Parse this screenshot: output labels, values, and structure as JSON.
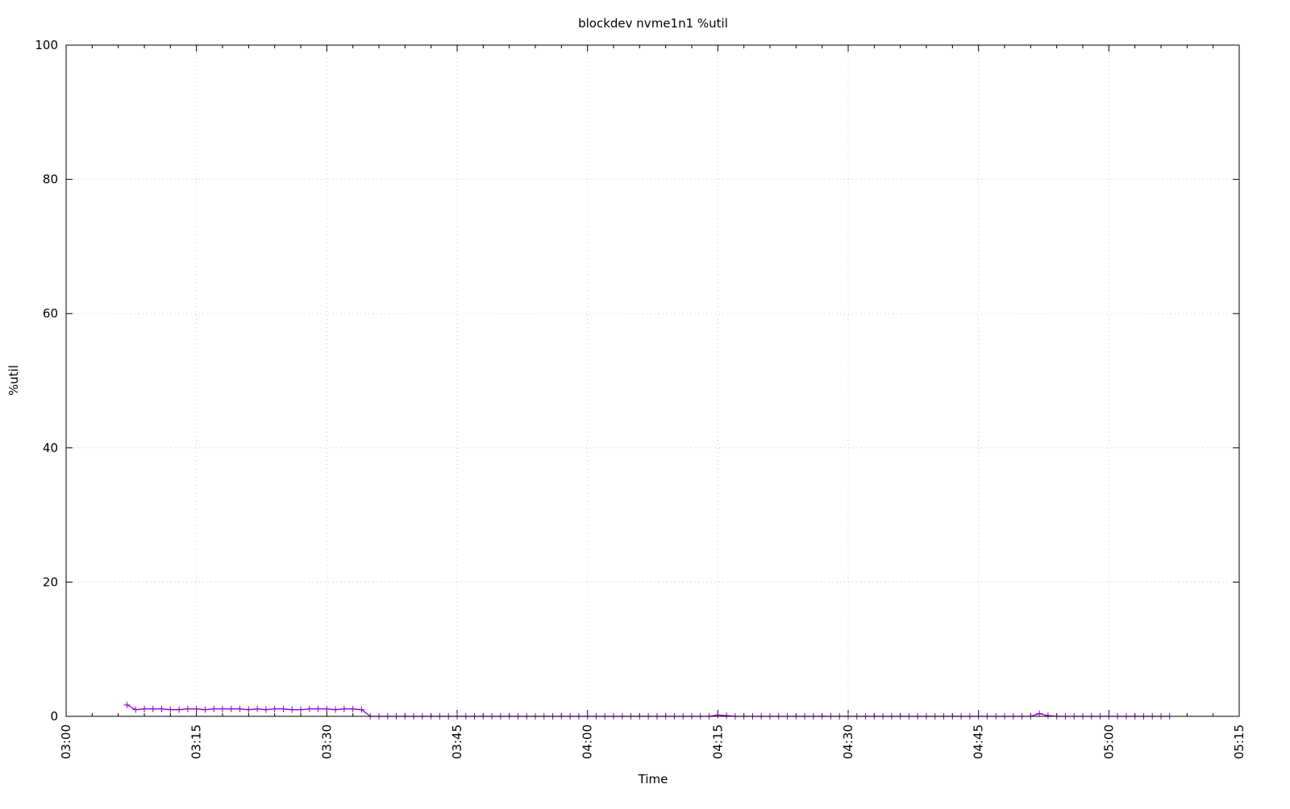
{
  "chart_data": {
    "type": "line",
    "title": "blockdev nvme1n1 %util",
    "xlabel": "Time",
    "ylabel": "%util",
    "xlim": [
      "03:00",
      "05:15"
    ],
    "ylim": [
      0,
      100
    ],
    "x_ticks": [
      "03:00",
      "03:15",
      "03:30",
      "03:45",
      "04:00",
      "04:15",
      "04:30",
      "04:45",
      "05:00",
      "05:15"
    ],
    "y_ticks": [
      0,
      20,
      40,
      60,
      80,
      100
    ],
    "grid": true,
    "legend": "none",
    "series": [
      {
        "color": "#9400d3",
        "marker": "plus",
        "x": [
          "03:07",
          "03:08",
          "03:09",
          "03:10",
          "03:11",
          "03:12",
          "03:13",
          "03:14",
          "03:15",
          "03:16",
          "03:17",
          "03:18",
          "03:19",
          "03:20",
          "03:21",
          "03:22",
          "03:23",
          "03:24",
          "03:25",
          "03:26",
          "03:27",
          "03:28",
          "03:29",
          "03:30",
          "03:31",
          "03:32",
          "03:33",
          "03:34",
          "03:35",
          "03:36",
          "03:37",
          "03:38",
          "03:39",
          "03:40",
          "03:41",
          "03:42",
          "03:43",
          "03:44",
          "03:45",
          "03:46",
          "03:47",
          "03:48",
          "03:49",
          "03:50",
          "03:51",
          "03:52",
          "03:53",
          "03:54",
          "03:55",
          "03:56",
          "03:57",
          "03:58",
          "03:59",
          "04:00",
          "04:01",
          "04:02",
          "04:03",
          "04:04",
          "04:05",
          "04:06",
          "04:07",
          "04:08",
          "04:09",
          "04:10",
          "04:11",
          "04:12",
          "04:13",
          "04:14",
          "04:15",
          "04:16",
          "04:17",
          "04:18",
          "04:19",
          "04:20",
          "04:21",
          "04:22",
          "04:23",
          "04:24",
          "04:25",
          "04:26",
          "04:27",
          "04:28",
          "04:29",
          "04:30",
          "04:31",
          "04:32",
          "04:33",
          "04:34",
          "04:35",
          "04:36",
          "04:37",
          "04:38",
          "04:39",
          "04:40",
          "04:41",
          "04:42",
          "04:43",
          "04:44",
          "04:45",
          "04:46",
          "04:47",
          "04:48",
          "04:49",
          "04:50",
          "04:51",
          "04:52",
          "04:53",
          "04:54",
          "04:55",
          "04:56",
          "04:57",
          "04:58",
          "04:59",
          "05:00",
          "05:01",
          "05:02",
          "05:03",
          "05:04",
          "05:05",
          "05:06",
          "05:07"
        ],
        "values": [
          1.7,
          1.0,
          1.1,
          1.1,
          1.1,
          1.0,
          1.0,
          1.1,
          1.1,
          1.0,
          1.1,
          1.1,
          1.1,
          1.1,
          1.0,
          1.1,
          1.0,
          1.1,
          1.1,
          1.0,
          1.0,
          1.1,
          1.1,
          1.1,
          1.0,
          1.1,
          1.1,
          1.0,
          0,
          0,
          0,
          0,
          0,
          0,
          0,
          0,
          0,
          0,
          0,
          0,
          0,
          0,
          0,
          0,
          0,
          0,
          0,
          0,
          0,
          0,
          0,
          0,
          0,
          0,
          0,
          0,
          0,
          0,
          0,
          0,
          0,
          0,
          0,
          0,
          0,
          0,
          0,
          0,
          0.2,
          0.1,
          0,
          0,
          0,
          0,
          0,
          0,
          0,
          0,
          0,
          0,
          0,
          0,
          0,
          0,
          0,
          0,
          0,
          0,
          0,
          0,
          0,
          0,
          0,
          0,
          0,
          0,
          0,
          0,
          0,
          0,
          0,
          0,
          0,
          0,
          0,
          0.4,
          0.1,
          0,
          0,
          0,
          0,
          0,
          0,
          0,
          0,
          0,
          0,
          0,
          0,
          0,
          0
        ]
      }
    ]
  }
}
